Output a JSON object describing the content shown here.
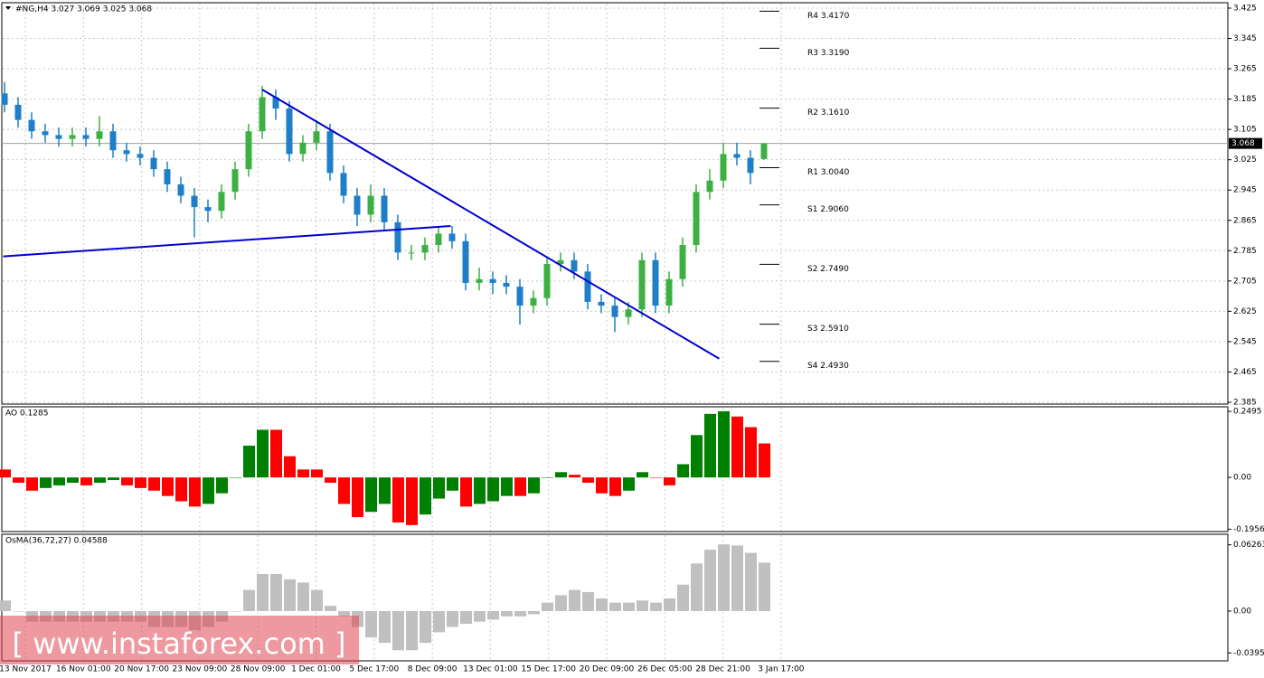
{
  "chart_data": [
    {
      "type": "candlestick",
      "title": "#NG,H4  3.027 3.069 3.025 3.068",
      "open": [
        3.2,
        3.17,
        3.13,
        3.1,
        3.09,
        3.08,
        3.09,
        3.08,
        3.1,
        3.05,
        3.04,
        3.03,
        3.0,
        2.96,
        2.93,
        2.9,
        2.89,
        2.94,
        3.0,
        3.1,
        3.19,
        3.16,
        3.04,
        3.07,
        3.1,
        2.99,
        2.93,
        2.88,
        2.93,
        2.86,
        2.78,
        2.78,
        2.8,
        2.83,
        2.81,
        2.7,
        2.71,
        2.7,
        2.69,
        2.64,
        2.66,
        2.75,
        2.76,
        2.73,
        2.65,
        2.64,
        2.61,
        2.63,
        2.76,
        2.64,
        2.71,
        2.8,
        2.94,
        2.97,
        3.04,
        3.03,
        3.027
      ],
      "high": [
        3.23,
        3.19,
        3.15,
        3.12,
        3.11,
        3.11,
        3.11,
        3.14,
        3.12,
        3.07,
        3.06,
        3.05,
        3.02,
        2.98,
        2.95,
        2.92,
        2.96,
        3.02,
        3.12,
        3.22,
        3.21,
        3.18,
        3.09,
        3.13,
        3.12,
        3.01,
        2.95,
        2.96,
        2.95,
        2.88,
        2.8,
        2.82,
        2.85,
        2.85,
        2.83,
        2.74,
        2.73,
        2.72,
        2.71,
        2.68,
        2.77,
        2.78,
        2.78,
        2.75,
        2.67,
        2.66,
        2.65,
        2.78,
        2.78,
        2.73,
        2.82,
        2.96,
        3.0,
        3.07,
        3.07,
        3.05,
        3.069
      ],
      "low": [
        3.15,
        3.11,
        3.08,
        3.07,
        3.06,
        3.06,
        3.06,
        3.06,
        3.03,
        3.02,
        3.01,
        2.98,
        2.94,
        2.91,
        2.82,
        2.86,
        2.87,
        2.92,
        2.98,
        3.08,
        3.13,
        3.02,
        3.02,
        3.05,
        2.97,
        2.91,
        2.85,
        2.86,
        2.84,
        2.76,
        2.76,
        2.76,
        2.78,
        2.79,
        2.68,
        2.68,
        2.67,
        2.67,
        2.59,
        2.62,
        2.64,
        2.73,
        2.71,
        2.63,
        2.62,
        2.57,
        2.59,
        2.61,
        2.62,
        2.62,
        2.69,
        2.78,
        2.92,
        2.95,
        3.01,
        2.96,
        3.025
      ],
      "close": [
        3.17,
        3.13,
        3.1,
        3.09,
        3.08,
        3.09,
        3.08,
        3.1,
        3.05,
        3.04,
        3.03,
        3.0,
        2.96,
        2.93,
        2.9,
        2.89,
        2.94,
        3.0,
        3.1,
        3.19,
        3.16,
        3.04,
        3.07,
        3.1,
        2.99,
        2.93,
        2.88,
        2.93,
        2.86,
        2.78,
        2.78,
        2.8,
        2.83,
        2.81,
        2.7,
        2.71,
        2.7,
        2.69,
        2.64,
        2.66,
        2.75,
        2.76,
        2.73,
        2.65,
        2.64,
        2.61,
        2.63,
        2.76,
        2.64,
        2.71,
        2.8,
        2.94,
        2.97,
        3.04,
        3.03,
        2.99,
        3.068
      ],
      "up_color": "#3cb043",
      "down_color": "#1e7fc8",
      "ylim": [
        2.3802,
        3.4393
      ],
      "yticks": [
        3.425,
        3.345,
        3.265,
        3.185,
        3.105,
        3.025,
        2.945,
        2.865,
        2.785,
        2.705,
        2.625,
        2.545,
        2.465,
        2.385
      ],
      "grid": true,
      "last_price": 3.068,
      "pivots": [
        {
          "label": "R4 3.4170",
          "value": 3.417
        },
        {
          "label": "R3 3.3190",
          "value": 3.319
        },
        {
          "label": "R2 3.1610",
          "value": 3.161
        },
        {
          "label": "R1 3.0040",
          "value": 3.004
        },
        {
          "label": "S1 2.9060",
          "value": 2.906
        },
        {
          "label": "S2 2.7490",
          "value": 2.749
        },
        {
          "label": "S3 2.5910",
          "value": 2.591
        },
        {
          "label": "S4 2.4930",
          "value": 2.493
        }
      ],
      "trendline_color": "#0000cd",
      "trendlines": [
        {
          "x": [
            19,
            52.7
          ],
          "y": [
            3.21,
            2.5
          ]
        },
        {
          "x": [
            -0.1,
            32.9
          ],
          "y": [
            2.77,
            2.85
          ]
        }
      ]
    },
    {
      "type": "histogram",
      "title": "AO 0.1285",
      "values": [
        0.03,
        -0.02,
        -0.05,
        -0.04,
        -0.03,
        -0.02,
        -0.03,
        -0.02,
        -0.01,
        -0.03,
        -0.04,
        -0.05,
        -0.07,
        -0.09,
        -0.11,
        -0.1,
        -0.06,
        0.0,
        0.12,
        0.18,
        0.18,
        0.08,
        0.03,
        0.03,
        -0.02,
        -0.1,
        -0.15,
        -0.13,
        -0.1,
        -0.17,
        -0.18,
        -0.14,
        -0.08,
        -0.05,
        -0.11,
        -0.1,
        -0.09,
        -0.07,
        -0.07,
        -0.06,
        0.0,
        0.02,
        0.01,
        -0.02,
        -0.06,
        -0.07,
        -0.05,
        0.02,
        0.0,
        -0.03,
        0.05,
        0.16,
        0.24,
        0.25,
        0.23,
        0.19,
        0.1285
      ],
      "up_color": "#008000",
      "down_color": "#ff0000",
      "ylim": [
        -0.2044,
        0.2668
      ],
      "yticks": [
        0.2495,
        {
          "value": 0,
          "label": "0.00"
        },
        -0.1956
      ]
    },
    {
      "type": "histogram",
      "title": "OsMA(36,72,27) 0.04588",
      "values": [
        0.01,
        0.0,
        -0.01,
        -0.01,
        -0.01,
        -0.01,
        -0.01,
        -0.01,
        -0.01,
        -0.01,
        -0.01,
        -0.015,
        -0.015,
        -0.015,
        -0.018,
        -0.015,
        -0.01,
        0.0,
        0.02,
        0.035,
        0.035,
        0.03,
        0.027,
        0.02,
        0.005,
        -0.005,
        -0.015,
        -0.025,
        -0.03,
        -0.037,
        -0.037,
        -0.03,
        -0.02,
        -0.015,
        -0.012,
        -0.01,
        -0.008,
        -0.005,
        -0.005,
        -0.003,
        0.008,
        0.015,
        0.02,
        0.018,
        0.012,
        0.008,
        0.008,
        0.01,
        0.008,
        0.012,
        0.025,
        0.045,
        0.058,
        0.063,
        0.062,
        0.055,
        0.04588
      ],
      "color": "#c0c0c0",
      "ylim": [
        -0.047,
        0.0726
      ],
      "yticks": [
        0.06263,
        {
          "value": 0,
          "label": "0.00"
        },
        -0.03955
      ]
    }
  ],
  "x_labels": [
    "13 Nov 2017",
    "16 Nov 01:00",
    "20 Nov 17:00",
    "23 Nov 09:00",
    "28 Nov 09:00",
    "1 Dec 01:00",
    "5 Dec 17:00",
    "8 Dec 09:00",
    "13 Dec 01:00",
    "15 Dec 17:00",
    "20 Dec 09:00",
    "26 Dec 05:00",
    "28 Dec 21:00",
    "3 Jan 17:00"
  ],
  "watermark": "[ www.instaforex.com ]"
}
